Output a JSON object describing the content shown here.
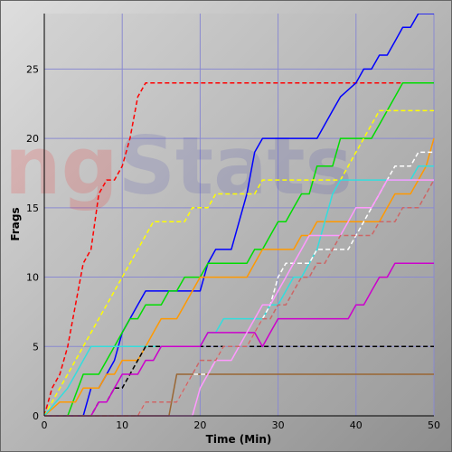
{
  "watermark": {
    "prefix": "ng",
    "rest": "Stats"
  },
  "chart_data": {
    "type": "line",
    "title": "",
    "xlabel": "Time (Min)",
    "ylabel": "Frags",
    "xlim": [
      0,
      50
    ],
    "ylim": [
      0,
      29
    ],
    "xticks": [
      0,
      10,
      20,
      30,
      40,
      50
    ],
    "yticks": [
      0,
      5,
      10,
      15,
      20,
      25
    ],
    "grid": true,
    "legend": "none",
    "series": [
      {
        "color": "#ff0000",
        "dashed": true,
        "x": [
          0,
          1,
          2,
          3,
          4,
          5,
          6,
          7,
          8,
          9,
          10,
          11,
          12,
          13,
          20,
          30,
          40,
          46
        ],
        "y": [
          0,
          2,
          3,
          5,
          8,
          11,
          12,
          16,
          17,
          17,
          18,
          20,
          23,
          24,
          24,
          24,
          24,
          24
        ]
      },
      {
        "color": "#0000ff",
        "dashed": false,
        "x": [
          0,
          5,
          6,
          7,
          8,
          9,
          10,
          11,
          12,
          13,
          15,
          18,
          19,
          20,
          21,
          22,
          23,
          24,
          25,
          26,
          27,
          28,
          29,
          30,
          35,
          36,
          37,
          38,
          40,
          41,
          42,
          43,
          44,
          45,
          46,
          47,
          48,
          49,
          50
        ],
        "y": [
          0,
          0,
          2,
          2,
          3,
          4,
          6,
          7,
          8,
          9,
          9,
          9,
          9,
          9,
          11,
          12,
          12,
          12,
          14,
          16,
          19,
          20,
          20,
          20,
          20,
          21,
          22,
          23,
          24,
          25,
          25,
          26,
          26,
          27,
          28,
          28,
          29,
          29,
          29
        ]
      },
      {
        "color": "#00dd00",
        "dashed": false,
        "x": [
          0,
          3,
          5,
          6,
          7,
          8,
          9,
          10,
          11,
          12,
          13,
          14,
          15,
          16,
          17,
          18,
          19,
          20,
          21,
          22,
          23,
          24,
          25,
          26,
          27,
          28,
          29,
          30,
          31,
          32,
          33,
          34,
          35,
          36,
          37,
          38,
          39,
          40,
          41,
          42,
          43,
          44,
          45,
          46,
          47,
          48,
          49,
          50
        ],
        "y": [
          0,
          0,
          3,
          3,
          3,
          4,
          5,
          6,
          7,
          7,
          8,
          8,
          8,
          9,
          9,
          10,
          10,
          10,
          11,
          11,
          11,
          11,
          11,
          11,
          12,
          12,
          13,
          14,
          14,
          15,
          16,
          16,
          18,
          18,
          18,
          20,
          20,
          20,
          20,
          20,
          21,
          22,
          23,
          24,
          24,
          24,
          24,
          24
        ]
      },
      {
        "color": "#ffff00",
        "dashed": true,
        "x": [
          0,
          1,
          2,
          3,
          4,
          5,
          6,
          7,
          8,
          9,
          10,
          11,
          12,
          13,
          14,
          15,
          16,
          17,
          18,
          19,
          20,
          21,
          22,
          23,
          24,
          25,
          26,
          27,
          28,
          29,
          30,
          31,
          32,
          33,
          34,
          35,
          36,
          37,
          38,
          39,
          40,
          41,
          42,
          43,
          44,
          45,
          46,
          47,
          48,
          49,
          50
        ],
        "y": [
          0,
          1,
          2,
          3,
          4,
          5,
          6,
          7,
          8,
          9,
          10,
          11,
          12,
          13,
          14,
          14,
          14,
          14,
          14,
          15,
          15,
          15,
          16,
          16,
          16,
          16,
          16,
          16,
          17,
          17,
          17,
          17,
          17,
          17,
          17,
          17,
          17,
          17,
          17,
          18,
          19,
          20,
          21,
          22,
          22,
          22,
          22,
          22,
          22,
          22,
          22
        ]
      },
      {
        "color": "#ff9900",
        "dashed": false,
        "x": [
          0,
          2,
          3,
          4,
          5,
          6,
          7,
          8,
          9,
          10,
          11,
          12,
          13,
          14,
          15,
          16,
          17,
          18,
          19,
          20,
          21,
          22,
          23,
          24,
          25,
          26,
          27,
          28,
          29,
          30,
          31,
          32,
          33,
          34,
          35,
          36,
          37,
          38,
          39,
          40,
          41,
          42,
          43,
          44,
          45,
          46,
          47,
          48,
          49,
          50
        ],
        "y": [
          0,
          1,
          1,
          1,
          2,
          2,
          2,
          3,
          3,
          4,
          4,
          4,
          5,
          6,
          7,
          7,
          7,
          8,
          9,
          10,
          10,
          10,
          10,
          10,
          10,
          10,
          11,
          12,
          12,
          12,
          12,
          12,
          13,
          13,
          14,
          14,
          14,
          14,
          14,
          14,
          14,
          14,
          14,
          15,
          16,
          16,
          16,
          17,
          18,
          20
        ]
      },
      {
        "color": "#33dddd",
        "dashed": false,
        "x": [
          0,
          3,
          4,
          5,
          6,
          7,
          8,
          9,
          10,
          11,
          12,
          13,
          14,
          15,
          16,
          17,
          18,
          19,
          20,
          21,
          22,
          23,
          24,
          25,
          26,
          27,
          28,
          29,
          30,
          31,
          32,
          33,
          34,
          35,
          36,
          37,
          38,
          39,
          40,
          41,
          42,
          43,
          44,
          45,
          46,
          47,
          48,
          49,
          50
        ],
        "y": [
          0,
          2,
          3,
          4,
          5,
          5,
          5,
          5,
          5,
          5,
          5,
          5,
          5,
          5,
          5,
          5,
          5,
          5,
          5,
          6,
          6,
          7,
          7,
          7,
          7,
          7,
          7,
          8,
          8,
          9,
          10,
          10,
          11,
          12,
          14,
          16,
          17,
          17,
          17,
          17,
          17,
          17,
          17,
          17,
          17,
          17,
          18,
          18,
          18
        ]
      },
      {
        "color": "#000000",
        "dashed": true,
        "x": [
          0,
          6,
          7,
          8,
          9,
          10,
          11,
          12,
          13,
          14,
          15,
          20,
          30,
          40,
          50
        ],
        "y": [
          0,
          0,
          1,
          1,
          2,
          2,
          3,
          4,
          5,
          5,
          5,
          5,
          5,
          5,
          5
        ]
      },
      {
        "color": "#cc00cc",
        "dashed": false,
        "x": [
          0,
          6,
          7,
          8,
          9,
          10,
          11,
          12,
          13,
          14,
          15,
          16,
          17,
          18,
          19,
          20,
          21,
          22,
          23,
          24,
          25,
          26,
          27,
          28,
          29,
          30,
          31,
          32,
          33,
          34,
          35,
          36,
          37,
          38,
          39,
          40,
          41,
          42,
          43,
          44,
          45,
          46,
          47,
          48,
          49,
          50
        ],
        "y": [
          0,
          0,
          1,
          1,
          2,
          3,
          3,
          3,
          4,
          4,
          5,
          5,
          5,
          5,
          5,
          5,
          6,
          6,
          6,
          6,
          6,
          6,
          6,
          5,
          6,
          7,
          7,
          7,
          7,
          7,
          7,
          7,
          7,
          7,
          7,
          8,
          8,
          9,
          10,
          10,
          11,
          11,
          11,
          11,
          11,
          11
        ]
      },
      {
        "color": "#996633",
        "dashed": false,
        "x": [
          0,
          16,
          17,
          20,
          30,
          40,
          50
        ],
        "y": [
          0,
          0,
          3,
          3,
          3,
          3,
          3
        ]
      },
      {
        "color": "#ffffff",
        "dashed": true,
        "x": [
          0,
          12,
          13,
          17,
          18,
          19,
          20,
          21,
          22,
          23,
          24,
          25,
          26,
          27,
          28,
          29,
          30,
          31,
          32,
          33,
          34,
          35,
          36,
          37,
          38,
          39,
          40,
          41,
          42,
          43,
          44,
          45,
          46,
          47,
          48,
          49,
          50
        ],
        "y": [
          0,
          0,
          1,
          1,
          2,
          3,
          3,
          3,
          4,
          5,
          5,
          5,
          5,
          6,
          7,
          8,
          10,
          11,
          11,
          11,
          11,
          12,
          12,
          12,
          12,
          12,
          13,
          14,
          15,
          16,
          17,
          18,
          18,
          18,
          19,
          19,
          19
        ]
      },
      {
        "color": "#ff99ff",
        "dashed": false,
        "x": [
          0,
          19,
          20,
          21,
          22,
          23,
          24,
          25,
          26,
          27,
          28,
          29,
          30,
          31,
          32,
          33,
          34,
          35,
          36,
          37,
          38,
          39,
          40,
          41,
          42,
          43,
          44,
          45,
          46,
          47,
          48,
          49,
          50
        ],
        "y": [
          0,
          0,
          2,
          3,
          4,
          4,
          4,
          5,
          6,
          7,
          8,
          8,
          9,
          10,
          11,
          12,
          13,
          13,
          13,
          13,
          13,
          14,
          15,
          15,
          15,
          16,
          17,
          17,
          17,
          17,
          17,
          17,
          17
        ]
      },
      {
        "color": "#cc6666",
        "dashed": true,
        "x": [
          0,
          12,
          13,
          14,
          15,
          16,
          17,
          18,
          19,
          20,
          21,
          22,
          23,
          24,
          25,
          26,
          27,
          28,
          29,
          30,
          31,
          32,
          33,
          34,
          35,
          36,
          37,
          38,
          39,
          40,
          41,
          42,
          43,
          44,
          45,
          46,
          47,
          48,
          49,
          50
        ],
        "y": [
          0,
          0,
          1,
          1,
          1,
          1,
          1,
          2,
          3,
          4,
          4,
          4,
          5,
          5,
          5,
          5,
          6,
          7,
          7,
          8,
          8,
          9,
          10,
          10,
          11,
          11,
          12,
          13,
          13,
          13,
          13,
          13,
          14,
          14,
          14,
          15,
          15,
          15,
          16,
          17
        ]
      }
    ]
  }
}
